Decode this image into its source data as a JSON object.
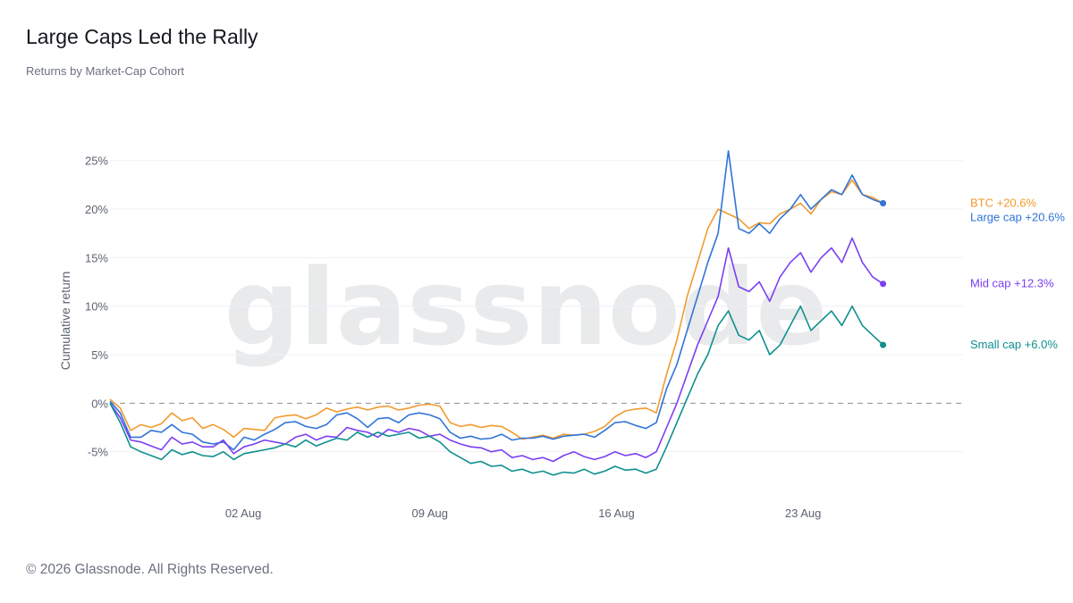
{
  "header": {
    "title": "Large Caps Led the Rally",
    "subtitle": "Returns by Market-Cap Cohort"
  },
  "watermark": "glassnode",
  "footer": {
    "copyright": "© 2026 Glassnode. All Rights Reserved."
  },
  "chart_data": {
    "type": "line",
    "title": "Large Caps Led the Rally",
    "subtitle": "Returns by Market-Cap Cohort",
    "ylabel": "Cumulative return",
    "xlabel": "",
    "x_start": "2025-07-28",
    "x_end": "2025-08-26",
    "xlim": [
      "2025-07-28",
      "2025-08-29"
    ],
    "ylim": [
      -10,
      27
    ],
    "x_ticks": [
      {
        "date": "2025-08-02",
        "label": "02 Aug"
      },
      {
        "date": "2025-08-09",
        "label": "09 Aug"
      },
      {
        "date": "2025-08-16",
        "label": "16 Aug"
      },
      {
        "date": "2025-08-23",
        "label": "23 Aug"
      }
    ],
    "y_ticks": [
      {
        "value": 25,
        "label": "25%"
      },
      {
        "value": 20,
        "label": "20%"
      },
      {
        "value": 15,
        "label": "15%"
      },
      {
        "value": 10,
        "label": "10%"
      },
      {
        "value": 5,
        "label": "5%"
      },
      {
        "value": 0,
        "label": "0%"
      },
      {
        "value": -5,
        "label": "-5%"
      }
    ],
    "zero_line": "dashed",
    "grid": "horizontal",
    "legend": "end-of-line labels",
    "series": [
      {
        "name": "BTC",
        "end_label": "BTC +20.6%",
        "color": "#f29a2e",
        "values": [
          0.4,
          -0.5,
          -2.8,
          -2.2,
          -2.5,
          -2.1,
          -1.0,
          -1.8,
          -1.5,
          -2.6,
          -2.2,
          -2.7,
          -3.5,
          -2.6,
          -2.7,
          -2.8,
          -1.5,
          -1.3,
          -1.2,
          -1.6,
          -1.2,
          -0.5,
          -0.9,
          -0.6,
          -0.4,
          -0.7,
          -0.4,
          -0.3,
          -0.7,
          -0.5,
          -0.2,
          -0.1,
          -0.3,
          -2.0,
          -2.4,
          -2.2,
          -2.5,
          -2.3,
          -2.4,
          -3.0,
          -3.7,
          -3.5,
          -3.3,
          -3.6,
          -3.2,
          -3.3,
          -3.2,
          -2.9,
          -2.4,
          -1.4,
          -0.8,
          -0.6,
          -0.5,
          -1.0,
          3.0,
          6.5,
          11.0,
          14.5,
          18.0,
          20.0,
          19.5,
          19.0,
          18.0,
          18.6,
          18.5,
          19.5,
          20.0,
          20.6,
          19.5,
          21.0,
          21.8,
          21.5,
          23.0,
          21.5,
          21.2,
          20.6
        ]
      },
      {
        "name": "Large cap",
        "end_label": "Large cap +20.6%",
        "color": "#2f74d9",
        "values": [
          0.2,
          -1.0,
          -3.5,
          -3.5,
          -2.8,
          -3.0,
          -2.2,
          -3.0,
          -3.2,
          -4.0,
          -4.2,
          -4.0,
          -4.8,
          -3.5,
          -3.8,
          -3.2,
          -2.7,
          -2.0,
          -1.9,
          -2.4,
          -2.6,
          -2.2,
          -1.2,
          -1.0,
          -1.6,
          -2.5,
          -1.6,
          -1.5,
          -2.0,
          -1.2,
          -1.0,
          -1.2,
          -1.6,
          -3.0,
          -3.6,
          -3.4,
          -3.7,
          -3.6,
          -3.2,
          -3.8,
          -3.6,
          -3.6,
          -3.4,
          -3.7,
          -3.4,
          -3.3,
          -3.2,
          -3.5,
          -2.8,
          -2.0,
          -1.9,
          -2.3,
          -2.6,
          -2.0,
          1.5,
          4.0,
          7.5,
          11.0,
          14.5,
          17.5,
          26.0,
          18.0,
          17.5,
          18.5,
          17.5,
          19.0,
          20.0,
          21.5,
          20.0,
          21.0,
          22.0,
          21.5,
          23.5,
          21.5,
          21.0,
          20.6
        ]
      },
      {
        "name": "Mid cap",
        "end_label": "Mid cap +12.3%",
        "color": "#7b3ff2",
        "values": [
          0.0,
          -1.5,
          -3.8,
          -4.0,
          -4.4,
          -4.8,
          -3.5,
          -4.2,
          -4.0,
          -4.5,
          -4.5,
          -3.8,
          -5.2,
          -4.5,
          -4.2,
          -3.8,
          -4.0,
          -4.2,
          -3.5,
          -3.2,
          -3.8,
          -3.4,
          -3.5,
          -2.5,
          -2.8,
          -3.0,
          -3.5,
          -2.7,
          -3.0,
          -2.6,
          -2.8,
          -3.4,
          -3.2,
          -3.8,
          -4.2,
          -4.5,
          -4.6,
          -5.0,
          -4.8,
          -5.6,
          -5.4,
          -5.8,
          -5.6,
          -6.0,
          -5.4,
          -5.0,
          -5.5,
          -5.8,
          -5.5,
          -5.0,
          -5.4,
          -5.2,
          -5.6,
          -5.0,
          -2.5,
          0.0,
          3.0,
          6.0,
          8.5,
          11.0,
          16.0,
          12.0,
          11.5,
          12.5,
          10.5,
          13.0,
          14.5,
          15.5,
          13.5,
          15.0,
          16.0,
          14.5,
          17.0,
          14.5,
          13.0,
          12.3
        ]
      },
      {
        "name": "Small cap",
        "end_label": "Small cap +6.0%",
        "color": "#0f8f8f",
        "values": [
          0.0,
          -2.0,
          -4.5,
          -5.0,
          -5.4,
          -5.8,
          -4.8,
          -5.3,
          -5.0,
          -5.4,
          -5.5,
          -5.0,
          -5.8,
          -5.2,
          -5.0,
          -4.8,
          -4.6,
          -4.2,
          -4.5,
          -3.8,
          -4.4,
          -4.0,
          -3.6,
          -3.8,
          -3.0,
          -3.5,
          -3.0,
          -3.4,
          -3.2,
          -3.0,
          -3.6,
          -3.4,
          -4.0,
          -5.0,
          -5.6,
          -6.2,
          -6.0,
          -6.5,
          -6.4,
          -7.0,
          -6.8,
          -7.2,
          -7.0,
          -7.4,
          -7.1,
          -7.2,
          -6.8,
          -7.3,
          -7.0,
          -6.5,
          -6.9,
          -6.8,
          -7.2,
          -6.8,
          -4.5,
          -2.0,
          0.5,
          3.0,
          5.0,
          8.0,
          9.5,
          7.0,
          6.5,
          7.5,
          5.0,
          6.0,
          8.0,
          10.0,
          7.5,
          8.5,
          9.5,
          8.0,
          10.0,
          8.0,
          7.0,
          6.0
        ]
      }
    ]
  }
}
